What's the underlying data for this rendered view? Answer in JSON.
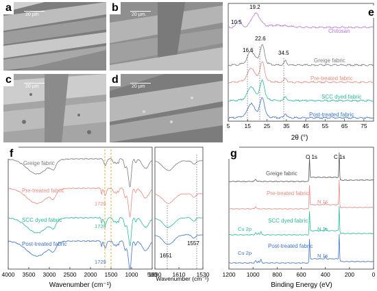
{
  "panels": {
    "a": {
      "label": "a",
      "scale_text": "20 µm"
    },
    "b": {
      "label": "b",
      "scale_text": "20 µm."
    },
    "c": {
      "label": "c",
      "scale_text": "20 µm"
    },
    "d": {
      "label": "d",
      "scale_text": "20 µm"
    },
    "e": {
      "label": "e"
    },
    "f": {
      "label": "f"
    },
    "g": {
      "label": "g"
    }
  },
  "chart_data": [
    {
      "panel": "e",
      "type": "line",
      "xlabel": "2θ (°)",
      "ylabel": "",
      "xlim": [
        5,
        80
      ],
      "xticks": [
        5,
        15,
        25,
        35,
        45,
        55,
        65,
        75
      ],
      "series": [
        {
          "name": "Chitosan",
          "color": "#b778d6"
        },
        {
          "name": "Greige fabric",
          "color": "#7a7a7a"
        },
        {
          "name": "Pre-treated fabric",
          "color": "#e58a80"
        },
        {
          "name": "SCC dyed fabric",
          "color": "#2bb89a"
        },
        {
          "name": "Post-treated fabric",
          "color": "#3d73c8"
        }
      ],
      "peak_labels": [
        "10.5",
        "19.2",
        "16.6",
        "22.6",
        "34.5"
      ]
    },
    {
      "panel": "f",
      "type": "line",
      "xlabel": "Wavenumber (cm⁻¹)",
      "xlim": [
        4000,
        500
      ],
      "xticks": [
        4000,
        3500,
        3000,
        2500,
        2000,
        1500,
        1000,
        500
      ],
      "series": [
        {
          "name": "Greige fabric",
          "color": "#7a7a7a"
        },
        {
          "name": "Pre-treated fabric",
          "color": "#e58a80"
        },
        {
          "name": "SCC dyed fabric",
          "color": "#2bb89a"
        },
        {
          "name": "Post-treated fabric",
          "color": "#3d73c8"
        }
      ],
      "peak_labels": [
        "1729",
        "1729",
        "1729"
      ]
    },
    {
      "panel": "f-inset",
      "type": "line",
      "xlabel": "Wavenumber (cm⁻¹)",
      "xlim": [
        1690,
        1530
      ],
      "xticks": [
        1690,
        1610,
        1530
      ],
      "peak_labels": [
        "1651",
        "1557"
      ]
    },
    {
      "panel": "g",
      "type": "line",
      "xlabel": "Binding Energy (eV)",
      "xlim": [
        1200,
        0
      ],
      "xticks": [
        1200,
        1000,
        800,
        600,
        400,
        200,
        0
      ],
      "series": [
        {
          "name": "Greige fabric",
          "color": "#555555"
        },
        {
          "name": "Pre-treated fabric",
          "color": "#e58a80"
        },
        {
          "name": "SCC dyed fabric",
          "color": "#2bb89a"
        },
        {
          "name": "Post-treated fabric",
          "color": "#3d73c8"
        }
      ],
      "peak_labels": [
        "O 1s",
        "C 1s",
        "N 1s",
        "N 1s",
        "Cu 2p",
        "N 1s",
        "Cu 2p"
      ]
    }
  ]
}
